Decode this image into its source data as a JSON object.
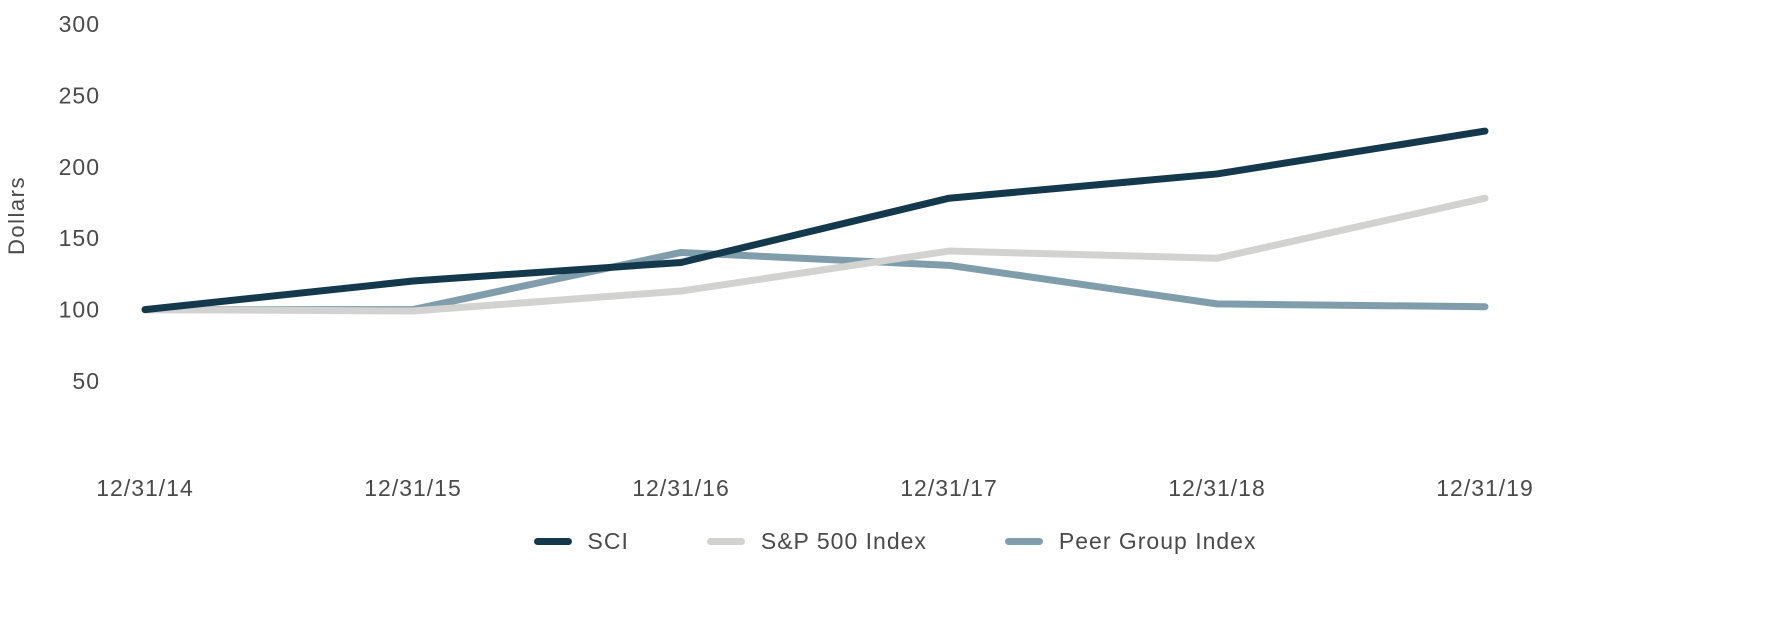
{
  "chart_data": {
    "type": "line",
    "title": "",
    "xlabel": "",
    "ylabel": "Dollars",
    "categories": [
      "12/31/14",
      "12/31/15",
      "12/31/16",
      "12/31/17",
      "12/31/18",
      "12/31/19"
    ],
    "series": [
      {
        "name": "SCI",
        "color": "#14394d",
        "values": [
          100,
          120,
          133,
          178,
          195,
          225
        ]
      },
      {
        "name": "S&P 500 Index",
        "color": "#d2d2d0",
        "values": [
          100,
          99,
          113,
          141,
          136,
          178
        ]
      },
      {
        "name": "Peer Group Index",
        "color": "#7f9dab",
        "values": [
          100,
          100,
          140,
          131,
          104,
          102
        ]
      }
    ],
    "yticks": [
      300,
      250,
      200,
      150,
      100,
      50
    ],
    "ylim": [
      50,
      300
    ],
    "grid": false,
    "legend_position": "bottom",
    "text_color": "#4a4a4a",
    "line_width": 7
  }
}
